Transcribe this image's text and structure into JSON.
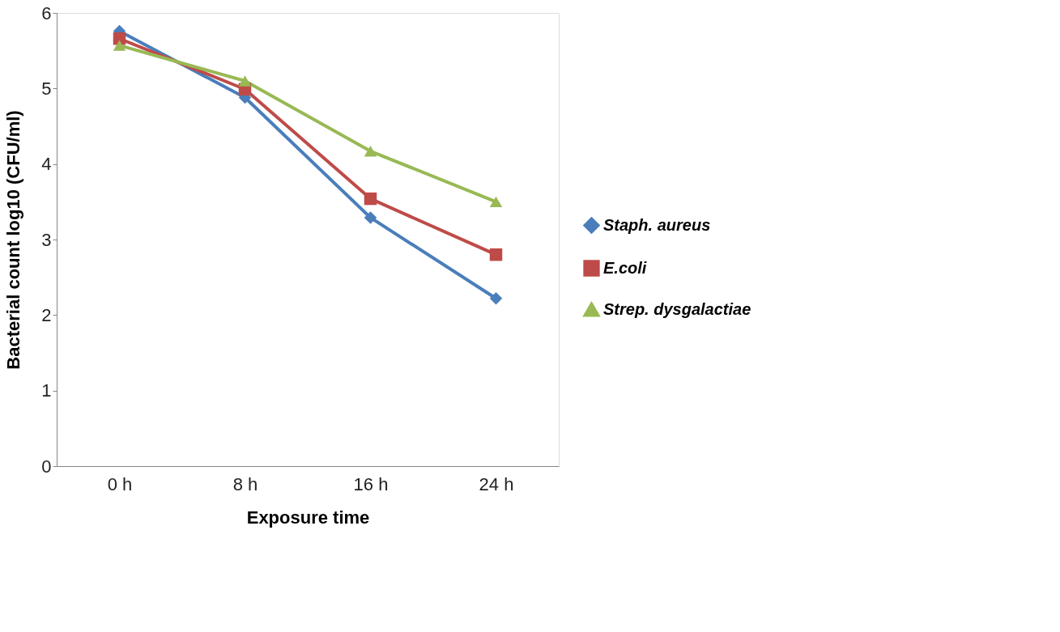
{
  "chart_data": {
    "type": "line",
    "xlabel": "Exposure time",
    "ylabel": "Bacterial count log10 (CFU/ml)",
    "categories": [
      "0 h",
      "8 h",
      "16 h",
      "24 h"
    ],
    "series": [
      {
        "name": "Staph. aureus",
        "color": "#4a7ebb",
        "marker": "diamond",
        "values": [
          5.76,
          4.88,
          3.29,
          2.22
        ]
      },
      {
        "name": "E.coli",
        "color": "#be4b48",
        "marker": "square",
        "values": [
          5.66,
          4.99,
          3.54,
          2.8
        ]
      },
      {
        "name": "Strep. dysgalactiae",
        "color": "#98b954",
        "marker": "triangle",
        "values": [
          5.57,
          5.1,
          4.17,
          3.5
        ]
      }
    ],
    "ylim": [
      0,
      6
    ],
    "yticks": [
      0,
      1,
      2,
      3,
      4,
      5,
      6
    ],
    "grid": false,
    "legend": "right",
    "line_style": "solid"
  }
}
